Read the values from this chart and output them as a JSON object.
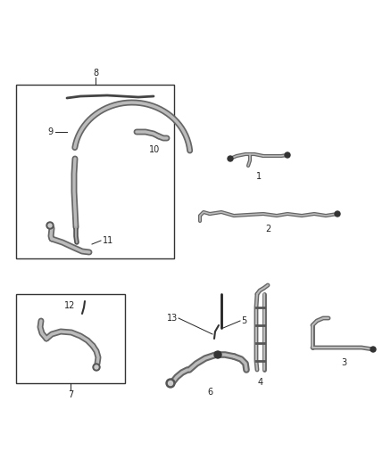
{
  "bg_color": "#ffffff",
  "fig_width": 4.38,
  "fig_height": 5.33,
  "dpi": 100,
  "font_size": 7,
  "line_color": "#222222"
}
